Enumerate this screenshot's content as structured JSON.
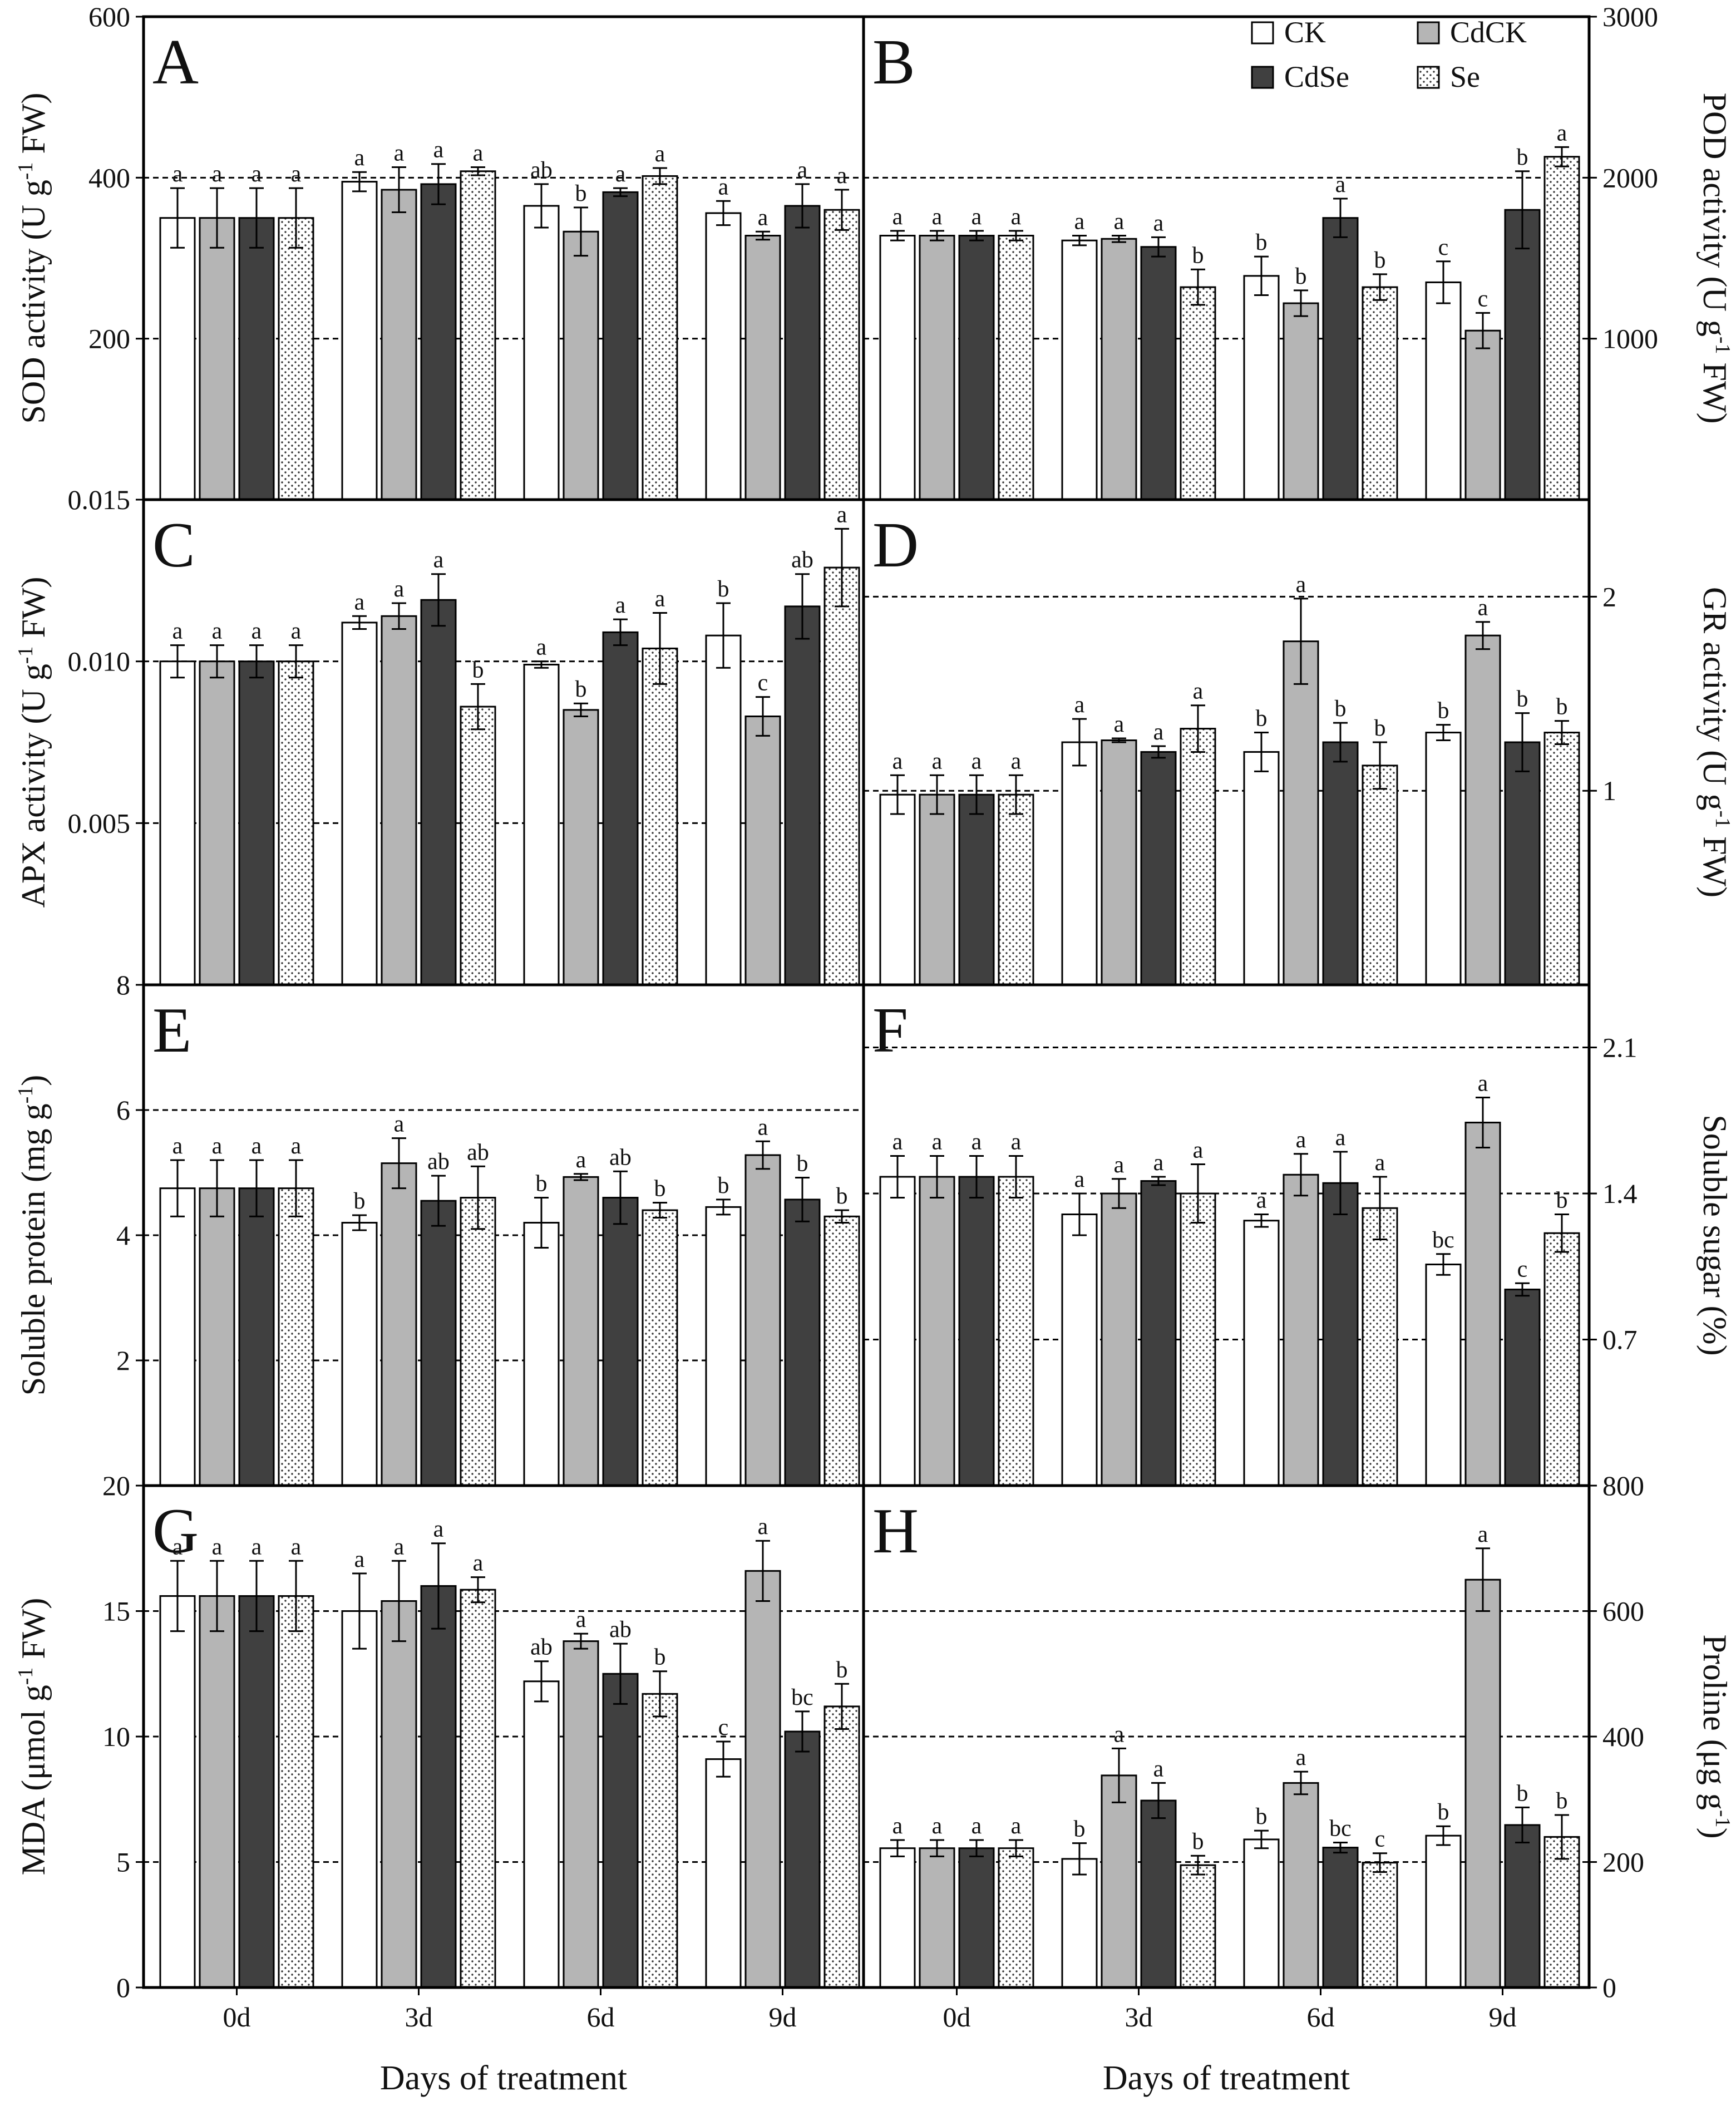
{
  "colors": {
    "CK": "#ffffff",
    "CdCK": "#b5b5b5",
    "CdSe": "#404040",
    "Se": "dotted-white",
    "axis": "#000000",
    "gridline": "#000000"
  },
  "legend": {
    "placement": "top-right of panel B",
    "items": [
      "CK",
      "CdCK",
      "CdSe",
      "Se"
    ]
  },
  "chart_data": [
    {
      "type": "bar",
      "panel": "A",
      "categories": [
        "0d",
        "3d",
        "6d",
        "9d"
      ],
      "series_names": [
        "CK",
        "CdCK",
        "CdSe",
        "Se"
      ],
      "ylabel": "SOD activity (U g-1 FW)",
      "ylabel_parts": [
        "SOD activity (U g",
        "-1",
        " FW)"
      ],
      "axis_side": "left",
      "ylim": [
        0,
        600
      ],
      "ticks": [
        0,
        200,
        400,
        600
      ],
      "tick_labels": [
        "0",
        "200",
        "400",
        "600"
      ],
      "hide_ticks": [
        0
      ],
      "gridlines": [
        200,
        400
      ],
      "values": [
        [
          350,
          350,
          350,
          350
        ],
        [
          395,
          385,
          392,
          408
        ],
        [
          365,
          333,
          382,
          402
        ],
        [
          356,
          328,
          365,
          360
        ]
      ],
      "errors": [
        [
          37,
          37,
          37,
          37
        ],
        [
          12,
          28,
          25,
          5
        ],
        [
          27,
          30,
          5,
          10
        ],
        [
          15,
          5,
          27,
          25
        ]
      ],
      "labels": [
        [
          "a",
          "a",
          "a",
          "a"
        ],
        [
          "a",
          "a",
          "a",
          "a"
        ],
        [
          "ab",
          "b",
          "a",
          "a"
        ],
        [
          "a",
          "a",
          "a",
          "a"
        ]
      ]
    },
    {
      "type": "bar",
      "panel": "B",
      "categories": [
        "0d",
        "3d",
        "6d",
        "9d"
      ],
      "series_names": [
        "CK",
        "CdCK",
        "CdSe",
        "Se"
      ],
      "ylabel": "POD activity (U g-1 FW)",
      "ylabel_parts": [
        "POD activity (U g",
        "-1",
        " FW)"
      ],
      "axis_side": "right",
      "ylim": [
        0,
        3000
      ],
      "ticks": [
        1000,
        2000,
        3000
      ],
      "tick_labels": [
        "1000",
        "2000",
        "3000"
      ],
      "hide_ticks": [],
      "gridlines": [
        1000,
        2000
      ],
      "values": [
        [
          1640,
          1640,
          1640,
          1640
        ],
        [
          1610,
          1620,
          1570,
          1320
        ],
        [
          1390,
          1220,
          1750,
          1320
        ],
        [
          1350,
          1050,
          1800,
          2130
        ]
      ],
      "errors": [
        [
          30,
          30,
          30,
          30
        ],
        [
          30,
          20,
          60,
          110
        ],
        [
          120,
          80,
          120,
          80
        ],
        [
          130,
          110,
          240,
          60
        ]
      ],
      "labels": [
        [
          "a",
          "a",
          "a",
          "a"
        ],
        [
          "a",
          "a",
          "a",
          "b"
        ],
        [
          "b",
          "b",
          "a",
          "b"
        ],
        [
          "c",
          "c",
          "b",
          "a"
        ]
      ]
    },
    {
      "type": "bar",
      "panel": "C",
      "categories": [
        "0d",
        "3d",
        "6d",
        "9d"
      ],
      "series_names": [
        "CK",
        "CdCK",
        "CdSe",
        "Se"
      ],
      "ylabel": "APX activity (U g-1 FW)",
      "ylabel_parts": [
        "APX activity (U g",
        "-1",
        " FW)"
      ],
      "axis_side": "left",
      "ylim": [
        0,
        0.015
      ],
      "ticks": [
        0.005,
        0.01,
        0.015
      ],
      "tick_labels": [
        "0.005",
        "0.010",
        "0.015"
      ],
      "hide_ticks": [],
      "gridlines": [
        0.005,
        0.01
      ],
      "values": [
        [
          0.01,
          0.01,
          0.01,
          0.01
        ],
        [
          0.0112,
          0.0114,
          0.0119,
          0.0086
        ],
        [
          0.0099,
          0.0085,
          0.0109,
          0.0104
        ],
        [
          0.0108,
          0.0083,
          0.0117,
          0.0129
        ]
      ],
      "errors": [
        [
          0.0005,
          0.0005,
          0.0005,
          0.0005
        ],
        [
          0.0002,
          0.0004,
          0.0008,
          0.0007
        ],
        [
          0.0001,
          0.0002,
          0.0004,
          0.0011
        ],
        [
          0.001,
          0.0006,
          0.001,
          0.0012
        ]
      ],
      "labels": [
        [
          "a",
          "a",
          "a",
          "a"
        ],
        [
          "a",
          "a",
          "a",
          "b"
        ],
        [
          "a",
          "b",
          "a",
          "a"
        ],
        [
          "b",
          "c",
          "ab",
          "a"
        ]
      ]
    },
    {
      "type": "bar",
      "panel": "D",
      "categories": [
        "0d",
        "3d",
        "6d",
        "9d"
      ],
      "series_names": [
        "CK",
        "CdCK",
        "CdSe",
        "Se"
      ],
      "ylabel": "GR activity (U g-1 FW)",
      "ylabel_parts": [
        "GR activity (U g",
        "-1",
        " FW)"
      ],
      "axis_side": "right",
      "ylim": [
        0,
        2.5
      ],
      "ticks": [
        1,
        2
      ],
      "tick_labels": [
        "1",
        "2"
      ],
      "hide_ticks": [],
      "gridlines": [
        1,
        2
      ],
      "values": [
        [
          0.98,
          0.98,
          0.98,
          0.98
        ],
        [
          1.25,
          1.26,
          1.2,
          1.32
        ],
        [
          1.2,
          1.77,
          1.25,
          1.13
        ],
        [
          1.3,
          1.8,
          1.25,
          1.3
        ]
      ],
      "errors": [
        [
          0.1,
          0.1,
          0.1,
          0.1
        ],
        [
          0.12,
          0.01,
          0.03,
          0.12
        ],
        [
          0.1,
          0.22,
          0.1,
          0.12
        ],
        [
          0.04,
          0.07,
          0.15,
          0.06
        ]
      ],
      "labels": [
        [
          "a",
          "a",
          "a",
          "a"
        ],
        [
          "a",
          "a",
          "a",
          "a"
        ],
        [
          "b",
          "a",
          "b",
          "b"
        ],
        [
          "b",
          "a",
          "b",
          "b"
        ]
      ]
    },
    {
      "type": "bar",
      "panel": "E",
      "categories": [
        "0d",
        "3d",
        "6d",
        "9d"
      ],
      "series_names": [
        "CK",
        "CdCK",
        "CdSe",
        "Se"
      ],
      "ylabel": "Soluble protein (mg g-1)",
      "ylabel_parts": [
        "Soluble protein  (mg g",
        "-1",
        ")"
      ],
      "axis_side": "left",
      "ylim": [
        0,
        8
      ],
      "ticks": [
        2,
        4,
        6,
        8
      ],
      "tick_labels": [
        "2",
        "4",
        "6",
        "8"
      ],
      "hide_ticks": [],
      "gridlines": [
        2,
        4,
        6
      ],
      "values": [
        [
          4.75,
          4.75,
          4.75,
          4.75
        ],
        [
          4.2,
          5.15,
          4.55,
          4.6
        ],
        [
          4.2,
          4.93,
          4.6,
          4.4
        ],
        [
          4.45,
          5.28,
          4.57,
          4.3
        ]
      ],
      "errors": [
        [
          0.45,
          0.45,
          0.45,
          0.45
        ],
        [
          0.12,
          0.4,
          0.4,
          0.5
        ],
        [
          0.4,
          0.05,
          0.42,
          0.12
        ],
        [
          0.12,
          0.22,
          0.35,
          0.1
        ]
      ],
      "labels": [
        [
          "a",
          "a",
          "a",
          "a"
        ],
        [
          "b",
          "a",
          "ab",
          "ab"
        ],
        [
          "b",
          "a",
          "ab",
          "b"
        ],
        [
          "b",
          "a",
          "b",
          "b"
        ]
      ]
    },
    {
      "type": "bar",
      "panel": "F",
      "categories": [
        "0d",
        "3d",
        "6d",
        "9d"
      ],
      "series_names": [
        "CK",
        "CdCK",
        "CdSe",
        "Se"
      ],
      "ylabel": "Soluble sugar (%)",
      "ylabel_parts": [
        "Soluble sugar  (%)"
      ],
      "axis_side": "right",
      "ylim": [
        0,
        2.4
      ],
      "ticks": [
        0.7,
        1.4,
        2.1
      ],
      "tick_labels": [
        "0.7",
        "1.4",
        "2.1"
      ],
      "hide_ticks": [],
      "gridlines": [
        0.7,
        1.4,
        2.1
      ],
      "values": [
        [
          1.48,
          1.48,
          1.48,
          1.48
        ],
        [
          1.3,
          1.4,
          1.46,
          1.4
        ],
        [
          1.27,
          1.49,
          1.45,
          1.33
        ],
        [
          1.06,
          1.74,
          0.94,
          1.21
        ]
      ],
      "errors": [
        [
          0.1,
          0.1,
          0.1,
          0.1
        ],
        [
          0.1,
          0.07,
          0.02,
          0.14
        ],
        [
          0.03,
          0.1,
          0.15,
          0.15
        ],
        [
          0.05,
          0.12,
          0.03,
          0.09
        ]
      ],
      "labels": [
        [
          "a",
          "a",
          "a",
          "a"
        ],
        [
          "a",
          "a",
          "a",
          "a"
        ],
        [
          "a",
          "a",
          "a",
          "a"
        ],
        [
          "bc",
          "a",
          "c",
          "b"
        ]
      ]
    },
    {
      "type": "bar",
      "panel": "G",
      "categories": [
        "0d",
        "3d",
        "6d",
        "9d"
      ],
      "series_names": [
        "CK",
        "CdCK",
        "CdSe",
        "Se"
      ],
      "ylabel": "MDA (μmol g-1 FW)",
      "ylabel_parts": [
        "MDA  (μmol g",
        "-1",
        " FW)"
      ],
      "axis_side": "left",
      "ylim": [
        0,
        20
      ],
      "ticks": [
        0,
        5,
        10,
        15,
        20
      ],
      "tick_labels": [
        "0",
        "5",
        "10",
        "15",
        "20"
      ],
      "hide_ticks": [],
      "gridlines": [
        5,
        10,
        15
      ],
      "values": [
        [
          15.6,
          15.6,
          15.6,
          15.6
        ],
        [
          15,
          15.4,
          16,
          15.85
        ],
        [
          12.2,
          13.8,
          12.5,
          11.7
        ],
        [
          9.1,
          16.6,
          10.2,
          11.2
        ]
      ],
      "errors": [
        [
          1.4,
          1.4,
          1.4,
          1.4
        ],
        [
          1.5,
          1.6,
          1.7,
          0.5
        ],
        [
          0.8,
          0.3,
          1.2,
          0.9
        ],
        [
          0.7,
          1.2,
          0.8,
          0.9
        ]
      ],
      "labels": [
        [
          "a",
          "a",
          "a",
          "a"
        ],
        [
          "a",
          "a",
          "a",
          "a"
        ],
        [
          "ab",
          "a",
          "ab",
          "b"
        ],
        [
          "c",
          "a",
          "bc",
          "b"
        ]
      ]
    },
    {
      "type": "bar",
      "panel": "H",
      "categories": [
        "0d",
        "3d",
        "6d",
        "9d"
      ],
      "series_names": [
        "CK",
        "CdCK",
        "CdSe",
        "Se"
      ],
      "ylabel": "Proline (μg g-1)",
      "ylabel_parts": [
        "Proline  (μg g",
        "-1",
        ")"
      ],
      "axis_side": "right",
      "ylim": [
        0,
        800
      ],
      "ticks": [
        0,
        200,
        400,
        600,
        800
      ],
      "tick_labels": [
        "0",
        "200",
        "400",
        "600",
        "800"
      ],
      "hide_ticks": [],
      "gridlines": [
        200,
        400,
        600
      ],
      "values": [
        [
          222,
          222,
          222,
          222
        ],
        [
          205,
          338,
          298,
          195
        ],
        [
          236,
          326,
          223,
          199
        ],
        [
          242,
          650,
          259,
          240
        ]
      ],
      "errors": [
        [
          13,
          13,
          13,
          13
        ],
        [
          25,
          43,
          28,
          15
        ],
        [
          14,
          18,
          8,
          15
        ],
        [
          15,
          50,
          28,
          35
        ]
      ],
      "labels": [
        [
          "a",
          "a",
          "a",
          "a"
        ],
        [
          "b",
          "a",
          "a",
          "b"
        ],
        [
          "b",
          "a",
          "bc",
          "c"
        ],
        [
          "b",
          "a",
          "b",
          "b"
        ]
      ]
    }
  ],
  "x_axis": {
    "categories": [
      "0d",
      "3d",
      "6d",
      "9d"
    ],
    "xlabel_left": "Days of treatment",
    "xlabel_right": "Days of treatment"
  }
}
